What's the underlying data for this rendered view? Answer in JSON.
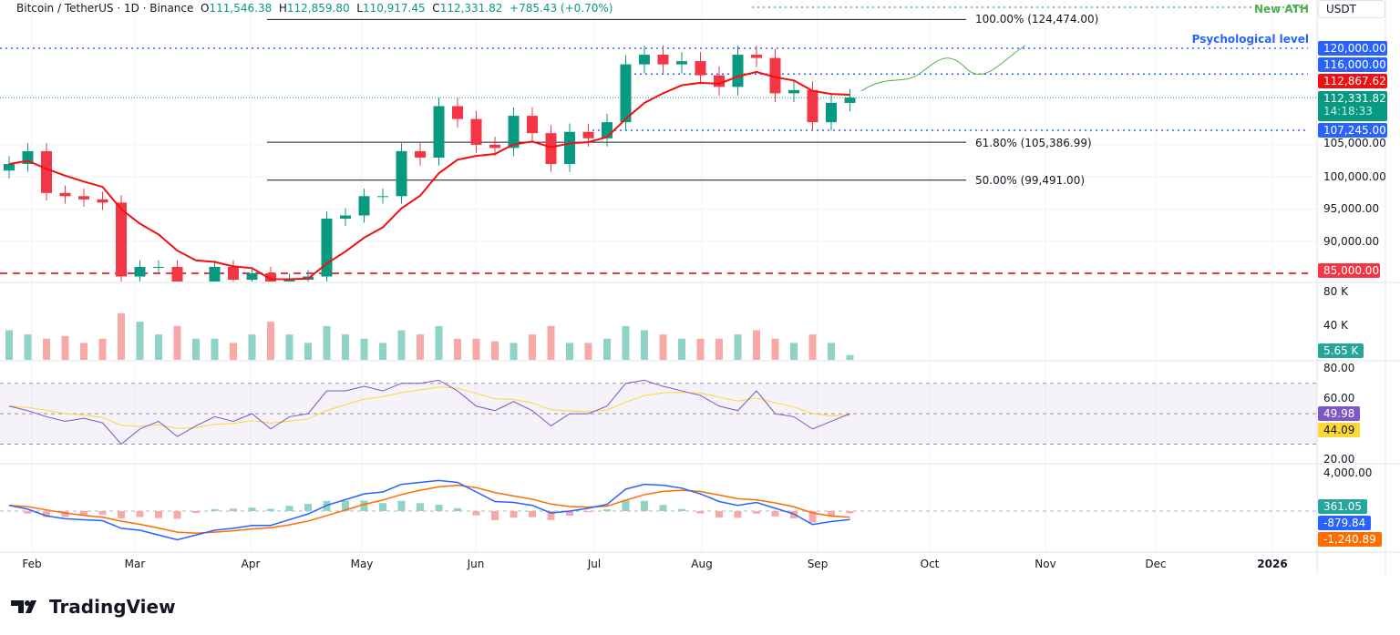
{
  "header": {
    "symbol": "Bitcoin / TetherUS · 1D · Binance",
    "o_label": "O",
    "open": "111,546.38",
    "h_label": "H",
    "high": "112,859.80",
    "l_label": "L",
    "low": "110,917.45",
    "c_label": "C",
    "close": "112,331.82",
    "change": "+785.43 (+0.70%)"
  },
  "currency": "USDT",
  "annotations": {
    "ath": "New ATH",
    "psych": "Psychological level"
  },
  "fib": [
    {
      "label": "100.00% (124,474.00)",
      "price": 124474
    },
    {
      "label": "61.80% (105,386.99)",
      "price": 105386.99
    },
    {
      "label": "50.00% (99,491.00)",
      "price": 99491
    }
  ],
  "tags": {
    "p120": "120,000.00",
    "p116": "116,000.00",
    "ma": "112,867.62",
    "price": "112,331.82",
    "countdown": "14:18:33",
    "p107": "107,245.00",
    "p85": "85,000.00",
    "vol": "5.65 K",
    "rsi": "49.98",
    "rsi_ma": "44.09",
    "macd_hist": "361.05",
    "macd": "-879.84",
    "signal": "-1,240.89"
  },
  "price_axis": [
    "105,000.00",
    "100,000.00",
    "95,000.00",
    "90,000.00"
  ],
  "vol_axis": [
    "80 K",
    "40 K"
  ],
  "rsi_axis": [
    "80.00",
    "60.00",
    "20.00"
  ],
  "macd_axis": [
    "4,000.00"
  ],
  "time_axis": [
    "Feb",
    "Mar",
    "Apr",
    "May",
    "Jun",
    "Jul",
    "Aug",
    "Sep",
    "Oct",
    "Nov",
    "Dec",
    "2026"
  ],
  "colors": {
    "up": "#089981",
    "down": "#f23645",
    "ma": "#f20f0f",
    "level": "#2962ff",
    "ath": "#4caf50",
    "rsi": "#7e57c2",
    "rsi_ma": "#fdd835",
    "macd": "#2962ff",
    "signal": "#ff6d00"
  },
  "logo": "TradingView",
  "chart_data": {
    "type": "candlestick",
    "x_start": "2025-01-27",
    "step_days": 5,
    "close": [
      102000,
      104000,
      97500,
      97000,
      96500,
      96000,
      84500,
      86000,
      86000,
      81000,
      82500,
      86000,
      84000,
      85000,
      79000,
      84000,
      84500,
      93500,
      94000,
      97000,
      97000,
      104000,
      103000,
      111000,
      109000,
      105000,
      104500,
      109500,
      106800,
      102000,
      107000,
      106000,
      108500,
      117500,
      119000,
      117500,
      118000,
      115800,
      114000,
      119000,
      118500,
      113000,
      113500,
      108500,
      111500,
      112331.82
    ],
    "volume_k": [
      35,
      30,
      25,
      28,
      20,
      25,
      55,
      45,
      30,
      40,
      25,
      25,
      20,
      30,
      45,
      30,
      20,
      40,
      30,
      25,
      20,
      35,
      30,
      40,
      25,
      25,
      22,
      20,
      30,
      40,
      20,
      20,
      25,
      40,
      35,
      30,
      25,
      25,
      25,
      30,
      35,
      25,
      20,
      30,
      20,
      5.65
    ],
    "rsi": [
      55,
      52,
      48,
      45,
      47,
      44,
      30,
      40,
      45,
      35,
      42,
      48,
      45,
      50,
      40,
      48,
      50,
      65,
      65,
      68,
      65,
      70,
      70,
      72,
      65,
      55,
      52,
      58,
      52,
      42,
      50,
      50,
      55,
      70,
      72,
      68,
      65,
      62,
      55,
      52,
      65,
      50,
      48,
      40,
      45,
      49.98
    ],
    "macd": [
      600,
      200,
      -500,
      -800,
      -900,
      -1000,
      -1800,
      -2000,
      -2500,
      -3000,
      -2500,
      -2000,
      -1800,
      -1500,
      -1500,
      -900,
      -300,
      600,
      1200,
      1800,
      2000,
      2800,
      3000,
      3200,
      3000,
      2000,
      1000,
      900,
      600,
      -200,
      0,
      300,
      700,
      2300,
      2800,
      2700,
      2400,
      1800,
      1000,
      600,
      900,
      300,
      -300,
      -1400,
      -1100,
      -879.84
    ],
    "levels": {
      "ath": 126400,
      "psych": 120000,
      "resistance": 116000,
      "support": 107245,
      "low": 85000
    },
    "ylim": [
      84000,
      127000
    ]
  }
}
